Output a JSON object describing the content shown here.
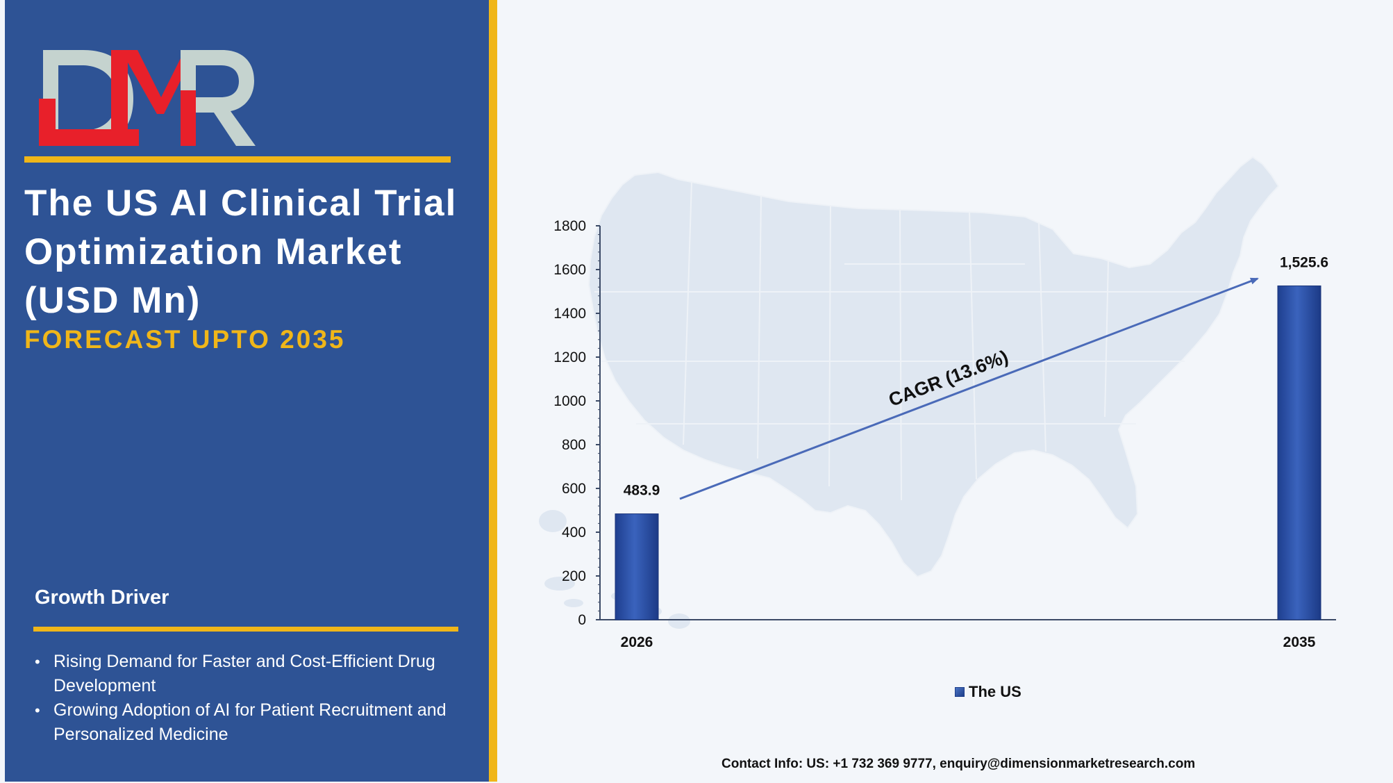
{
  "logo": {
    "text": "DMR"
  },
  "title": "The US AI Clinical Trial Optimization Market (USD Mn)",
  "subtitle": "FORECAST UPTO 2035",
  "growth_driver": {
    "heading": "Growth Driver",
    "items": [
      "Rising Demand for Faster and Cost-Efficient Drug Development",
      "Growing Adoption of AI for Patient Recruitment and Personalized Medicine"
    ]
  },
  "contact": "Contact Info: US: +1 732 369 9777, enquiry@dimensionmarketresearch.com",
  "colors": {
    "panel": "#2e5395",
    "accent": "#f0b619",
    "bar": "#2b4fa6",
    "map": "#dfe7f1",
    "logo_red": "#e8202a",
    "logo_gray": "#c5d3cf"
  },
  "background_image": "us-map-silhouette",
  "chart_data": {
    "type": "bar",
    "categories": [
      "2026",
      "2035"
    ],
    "series": [
      {
        "name": "The US",
        "values": [
          483.9,
          1525.6
        ],
        "data_labels": [
          "483.9",
          "1,525.6"
        ]
      }
    ],
    "ylim": [
      0,
      1800
    ],
    "yticks": [
      0,
      200,
      400,
      600,
      800,
      1000,
      1200,
      1400,
      1600,
      1800
    ],
    "annotation": "CAGR (13.6%)",
    "legend_position": "bottom",
    "grid": false
  }
}
